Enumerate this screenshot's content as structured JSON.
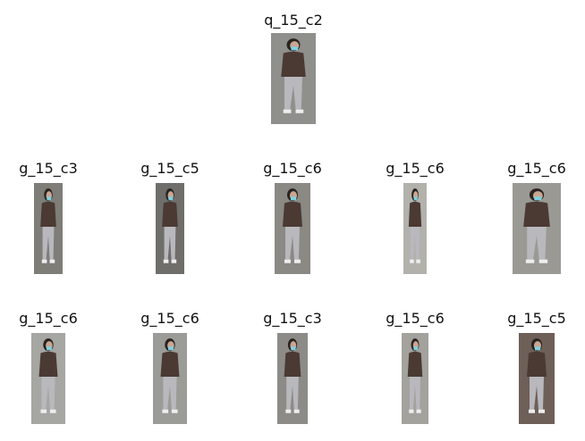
{
  "query": {
    "label": "q_15_c2",
    "background": "#8f8f8c"
  },
  "gallery": [
    {
      "label": "g_15_c3",
      "background": "#7e7d78"
    },
    {
      "label": "g_15_c5",
      "background": "#6f6e6b"
    },
    {
      "label": "g_15_c6",
      "background": "#8a8984"
    },
    {
      "label": "g_15_c6",
      "background": "#b2b1ac"
    },
    {
      "label": "g_15_c6",
      "background": "#9a9994"
    },
    {
      "label": "g_15_c6",
      "background": "#a6a6a2"
    },
    {
      "label": "g_15_c6",
      "background": "#9b9c98"
    },
    {
      "label": "g_15_c3",
      "background": "#8c8b87"
    },
    {
      "label": "g_15_c6",
      "background": "#a3a29d"
    },
    {
      "label": "g_15_c5",
      "background": "#6e5f59"
    }
  ],
  "colors": {
    "jacket": "#4a3a33",
    "pants": "#b8b8bd",
    "hair": "#2a2320",
    "skin": "#c9a692",
    "mask": "#7fd2e0",
    "shoes": "#eeeeee"
  }
}
